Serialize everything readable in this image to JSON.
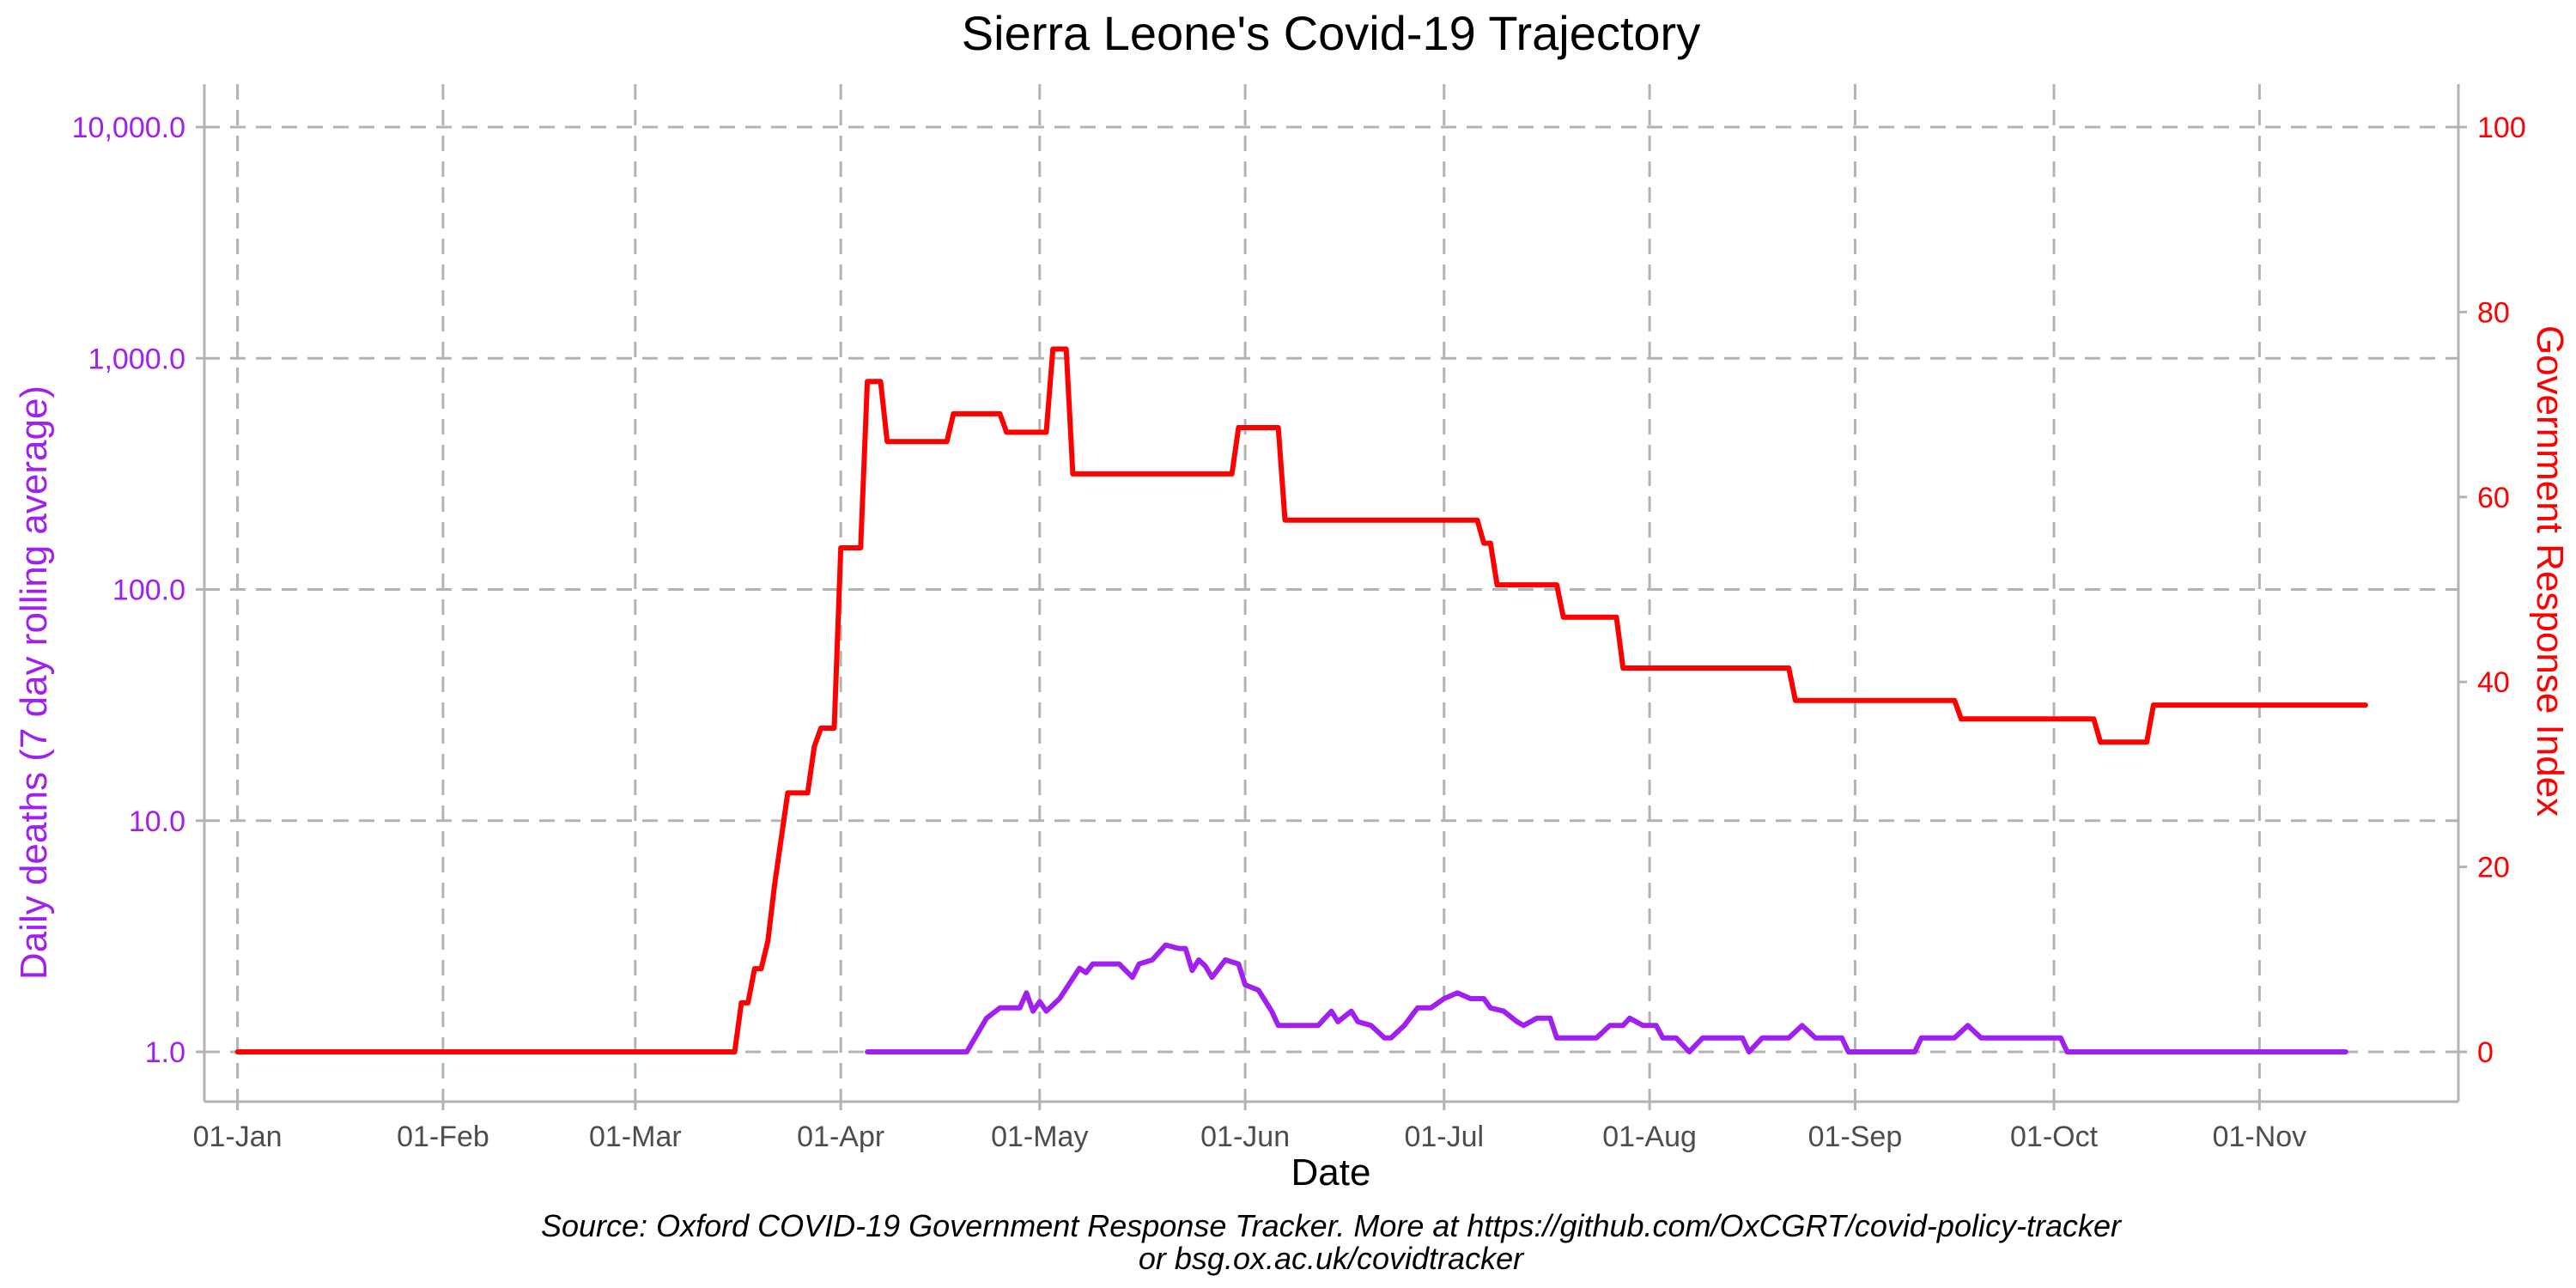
{
  "chart_data": {
    "type": "line",
    "title": "Sierra Leone's Covid-19 Trajectory",
    "xlabel": "Date",
    "ylabel_left": "Daily deaths (7 day rolling average)",
    "ylabel_right": "Government Response Index",
    "caption_line1": "Source: Oxford COVID-19 Government Response Tracker. More at https://github.com/OxCGRT/covid-policy-tracker",
    "caption_line2": "or bsg.ox.ac.uk/covidtracker",
    "x_ticks": [
      "01-Jan",
      "01-Feb",
      "01-Mar",
      "01-Apr",
      "01-May",
      "01-Jun",
      "01-Jul",
      "01-Aug",
      "01-Sep",
      "01-Oct",
      "01-Nov"
    ],
    "x_range": [
      "2019-12-27",
      "2020-12-01"
    ],
    "y_left": {
      "scale": "log",
      "range": [
        1,
        10000
      ],
      "ticks": [
        "1.0",
        "10.0",
        "100.0",
        "1,000.0",
        "10,000.0"
      ],
      "color": "#a020f0"
    },
    "y_right": {
      "scale": "linear",
      "range": [
        0,
        100
      ],
      "ticks": [
        "0",
        "20",
        "40",
        "60",
        "80",
        "100"
      ],
      "color": "#ff0000"
    },
    "grid": true,
    "series": [
      {
        "name": "Daily deaths (7 day rolling average)",
        "axis": "left",
        "color": "#a020f0",
        "points": [
          [
            "2020-04-05",
            1.0
          ],
          [
            "2020-04-20",
            1.0
          ],
          [
            "2020-04-23",
            1.4
          ],
          [
            "2020-04-25",
            1.55
          ],
          [
            "2020-04-28",
            1.55
          ],
          [
            "2020-04-29",
            1.8
          ],
          [
            "2020-04-30",
            1.5
          ],
          [
            "2020-05-01",
            1.65
          ],
          [
            "2020-05-02",
            1.5
          ],
          [
            "2020-05-04",
            1.7
          ],
          [
            "2020-05-07",
            2.3
          ],
          [
            "2020-05-08",
            2.2
          ],
          [
            "2020-05-09",
            2.4
          ],
          [
            "2020-05-13",
            2.4
          ],
          [
            "2020-05-15",
            2.1
          ],
          [
            "2020-05-16",
            2.4
          ],
          [
            "2020-05-18",
            2.5
          ],
          [
            "2020-05-20",
            2.9
          ],
          [
            "2020-05-22",
            2.8
          ],
          [
            "2020-05-23",
            2.8
          ],
          [
            "2020-05-24",
            2.25
          ],
          [
            "2020-05-25",
            2.5
          ],
          [
            "2020-05-26",
            2.35
          ],
          [
            "2020-05-27",
            2.1
          ],
          [
            "2020-05-29",
            2.5
          ],
          [
            "2020-05-31",
            2.4
          ],
          [
            "2020-06-01",
            1.95
          ],
          [
            "2020-06-03",
            1.85
          ],
          [
            "2020-06-05",
            1.5
          ],
          [
            "2020-06-06",
            1.3
          ],
          [
            "2020-06-12",
            1.3
          ],
          [
            "2020-06-14",
            1.5
          ],
          [
            "2020-06-15",
            1.35
          ],
          [
            "2020-06-17",
            1.5
          ],
          [
            "2020-06-18",
            1.35
          ],
          [
            "2020-06-20",
            1.3
          ],
          [
            "2020-06-22",
            1.15
          ],
          [
            "2020-06-23",
            1.15
          ],
          [
            "2020-06-25",
            1.3
          ],
          [
            "2020-06-27",
            1.55
          ],
          [
            "2020-06-29",
            1.55
          ],
          [
            "2020-07-01",
            1.7
          ],
          [
            "2020-07-03",
            1.8
          ],
          [
            "2020-07-05",
            1.7
          ],
          [
            "2020-07-07",
            1.7
          ],
          [
            "2020-07-08",
            1.55
          ],
          [
            "2020-07-10",
            1.5
          ],
          [
            "2020-07-12",
            1.35
          ],
          [
            "2020-07-13",
            1.3
          ],
          [
            "2020-07-15",
            1.4
          ],
          [
            "2020-07-17",
            1.4
          ],
          [
            "2020-07-18",
            1.15
          ],
          [
            "2020-07-24",
            1.15
          ],
          [
            "2020-07-26",
            1.3
          ],
          [
            "2020-07-28",
            1.3
          ],
          [
            "2020-07-29",
            1.4
          ],
          [
            "2020-07-31",
            1.3
          ],
          [
            "2020-08-02",
            1.3
          ],
          [
            "2020-08-03",
            1.15
          ],
          [
            "2020-08-05",
            1.15
          ],
          [
            "2020-08-07",
            1.0
          ],
          [
            "2020-08-09",
            1.15
          ],
          [
            "2020-08-15",
            1.15
          ],
          [
            "2020-08-16",
            1.0
          ],
          [
            "2020-08-18",
            1.15
          ],
          [
            "2020-08-22",
            1.15
          ],
          [
            "2020-08-24",
            1.3
          ],
          [
            "2020-08-26",
            1.15
          ],
          [
            "2020-08-30",
            1.15
          ],
          [
            "2020-08-31",
            1.0
          ],
          [
            "2020-09-10",
            1.0
          ],
          [
            "2020-09-11",
            1.15
          ],
          [
            "2020-09-16",
            1.15
          ],
          [
            "2020-09-18",
            1.3
          ],
          [
            "2020-09-20",
            1.15
          ],
          [
            "2020-10-02",
            1.15
          ],
          [
            "2020-10-03",
            1.0
          ],
          [
            "2020-11-14",
            1.0
          ]
        ]
      },
      {
        "name": "Government Response Index",
        "axis": "right",
        "color": "#ff0000",
        "points": [
          [
            "2020-01-01",
            0
          ],
          [
            "2020-03-16",
            0
          ],
          [
            "2020-03-17",
            5.3
          ],
          [
            "2020-03-18",
            5.3
          ],
          [
            "2020-03-19",
            9
          ],
          [
            "2020-03-20",
            9
          ],
          [
            "2020-03-21",
            12
          ],
          [
            "2020-03-22",
            18
          ],
          [
            "2020-03-24",
            28
          ],
          [
            "2020-03-26",
            28
          ],
          [
            "2020-03-27",
            28
          ],
          [
            "2020-03-28",
            33
          ],
          [
            "2020-03-29",
            35
          ],
          [
            "2020-03-31",
            35
          ],
          [
            "2020-04-01",
            54.5
          ],
          [
            "2020-04-04",
            54.5
          ],
          [
            "2020-04-05",
            72.5
          ],
          [
            "2020-04-07",
            72.5
          ],
          [
            "2020-04-08",
            66
          ],
          [
            "2020-04-17",
            66
          ],
          [
            "2020-04-18",
            69
          ],
          [
            "2020-04-25",
            69
          ],
          [
            "2020-04-26",
            67
          ],
          [
            "2020-05-02",
            67
          ],
          [
            "2020-05-03",
            76
          ],
          [
            "2020-05-05",
            76
          ],
          [
            "2020-05-06",
            62.5
          ],
          [
            "2020-05-30",
            62.5
          ],
          [
            "2020-05-31",
            67.5
          ],
          [
            "2020-06-06",
            67.5
          ],
          [
            "2020-06-07",
            57.5
          ],
          [
            "2020-07-06",
            57.5
          ],
          [
            "2020-07-07",
            55
          ],
          [
            "2020-07-08",
            55
          ],
          [
            "2020-07-09",
            50.5
          ],
          [
            "2020-07-18",
            50.5
          ],
          [
            "2020-07-19",
            47
          ],
          [
            "2020-07-27",
            47
          ],
          [
            "2020-07-28",
            41.5
          ],
          [
            "2020-08-22",
            41.5
          ],
          [
            "2020-08-23",
            38
          ],
          [
            "2020-09-16",
            38
          ],
          [
            "2020-09-17",
            36
          ],
          [
            "2020-10-07",
            36
          ],
          [
            "2020-10-08",
            33.5
          ],
          [
            "2020-10-15",
            33.5
          ],
          [
            "2020-10-16",
            37.5
          ],
          [
            "2020-11-17",
            37.5
          ]
        ]
      }
    ]
  }
}
